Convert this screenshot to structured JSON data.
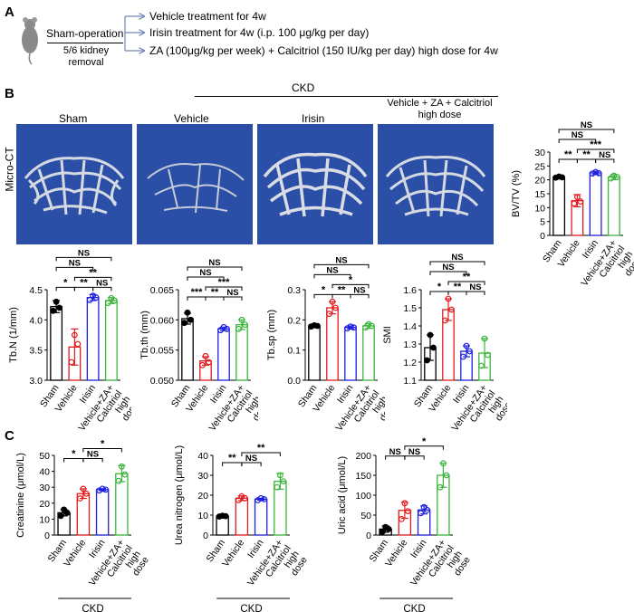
{
  "panelA": {
    "letter": "A",
    "sham_label": "Sham-operation",
    "removal_label": "5/6 kidney removal",
    "arrows": [
      "Vehicle treatment for 4w",
      "Irisin treatment for 4w (i.p. 100 μg/kg per day)",
      "ZA (100μg/kg per week) + Calcitriol (150 IU/kg per day) high dose for 4w"
    ]
  },
  "panelB": {
    "letter": "B",
    "ckd_header": "CKD",
    "microct_label": "Micro-CT",
    "image_titles": [
      "Sham",
      "Vehicle",
      "Irisin",
      "Vehicle + ZA + Calcitriol high dose"
    ]
  },
  "panelC": {
    "letter": "C"
  },
  "colors": {
    "sham": "#000000",
    "vehicle": "#e31a1c",
    "irisin": "#1f1fe0",
    "combo": "#3cb53c",
    "ct_bg": "#2b4fa6"
  },
  "chart_data": [
    {
      "id": "bvtv",
      "type": "bar",
      "ylabel": "BV/TV (%)",
      "ylim": [
        0,
        30
      ],
      "yticks": [
        "0",
        "5",
        "10",
        "15",
        "20",
        "25",
        "30"
      ],
      "categories": [
        "Sham",
        "Vehicle",
        "Irisin",
        "Vehicle+ZA+ Calcitriol high dose"
      ],
      "values": [
        21,
        12.5,
        22.5,
        21
      ],
      "errors": [
        0.6,
        2.2,
        0.6,
        0.9
      ],
      "points": [
        [
          20.8,
          21.2,
          20.9
        ],
        [
          11.5,
          13.8,
          12.2
        ],
        [
          22.3,
          22.8,
          22.4
        ],
        [
          20.5,
          21.5,
          21.0
        ]
      ],
      "group_label": "CKD",
      "sig": [
        {
          "from": 0,
          "to": 1,
          "label": "**",
          "level": 0
        },
        {
          "from": 1,
          "to": 2,
          "label": "**",
          "level": 0
        },
        {
          "from": 2,
          "to": 3,
          "label": "NS",
          "level": 0
        },
        {
          "from": 1,
          "to": 3,
          "label": "***",
          "level": 1
        },
        {
          "from": 0,
          "to": 2,
          "label": "NS",
          "level": 2
        },
        {
          "from": 0,
          "to": 3,
          "label": "NS",
          "level": 3
        }
      ]
    },
    {
      "id": "tbn",
      "type": "bar",
      "ylabel": "Tb.N (1/mm)",
      "ylim": [
        3.0,
        4.5
      ],
      "yticks": [
        "3.0",
        "3.5",
        "4.0",
        "4.5"
      ],
      "categories": [
        "Sham",
        "Vehicle",
        "Irisin",
        "Vehicle+ZA+ Calcitriol high dose"
      ],
      "values": [
        4.22,
        3.55,
        4.37,
        4.32
      ],
      "errors": [
        0.1,
        0.3,
        0.05,
        0.05
      ],
      "points": [
        [
          4.15,
          4.3,
          4.2
        ],
        [
          3.3,
          3.75,
          3.6
        ],
        [
          4.33,
          4.4,
          4.37
        ],
        [
          4.28,
          4.36,
          4.32
        ]
      ],
      "group_label": "CKD",
      "sig": [
        {
          "from": 0,
          "to": 1,
          "label": "*",
          "level": 0
        },
        {
          "from": 1,
          "to": 2,
          "label": "**",
          "level": 0
        },
        {
          "from": 2,
          "to": 3,
          "label": "NS",
          "level": 0
        },
        {
          "from": 1,
          "to": 3,
          "label": "**",
          "level": 1
        },
        {
          "from": 0,
          "to": 2,
          "label": "NS",
          "level": 2
        },
        {
          "from": 0,
          "to": 3,
          "label": "NS",
          "level": 3
        }
      ]
    },
    {
      "id": "tbth",
      "type": "bar",
      "ylabel": "Tb.th (mm)",
      "ylim": [
        0.05,
        0.065
      ],
      "yticks": [
        "0.050",
        "0.055",
        "0.060",
        "0.065"
      ],
      "categories": [
        "Sham",
        "Vehicle",
        "Irisin",
        "Vehicle+ZA+ Calcitriol high dose"
      ],
      "values": [
        0.0602,
        0.0532,
        0.0585,
        0.0592
      ],
      "errors": [
        0.0009,
        0.0007,
        0.0003,
        0.0008
      ],
      "points": [
        [
          0.0595,
          0.0612,
          0.06
        ],
        [
          0.0525,
          0.054,
          0.053
        ],
        [
          0.0583,
          0.0588,
          0.0585
        ],
        [
          0.0585,
          0.06,
          0.0592
        ]
      ],
      "group_label": "CKD",
      "sig": [
        {
          "from": 0,
          "to": 1,
          "label": "***",
          "level": 0
        },
        {
          "from": 1,
          "to": 2,
          "label": "**",
          "level": 0
        },
        {
          "from": 2,
          "to": 3,
          "label": "NS",
          "level": 0
        },
        {
          "from": 1,
          "to": 3,
          "label": "***",
          "level": 1
        },
        {
          "from": 0,
          "to": 2,
          "label": "NS",
          "level": 2
        },
        {
          "from": 0,
          "to": 3,
          "label": "NS",
          "level": 3
        }
      ]
    },
    {
      "id": "tbsp",
      "type": "bar",
      "ylabel": "Tb.sp (mm)",
      "ylim": [
        0,
        0.3
      ],
      "yticks": [
        "0.0",
        "0.1",
        "0.2",
        "0.3"
      ],
      "categories": [
        "Sham",
        "Vehicle",
        "Irisin",
        "Vehicle+ZA+ Calcitriol high dose"
      ],
      "values": [
        0.18,
        0.24,
        0.175,
        0.18
      ],
      "errors": [
        0.005,
        0.02,
        0.005,
        0.008
      ],
      "points": [
        [
          0.178,
          0.182,
          0.18
        ],
        [
          0.22,
          0.26,
          0.24
        ],
        [
          0.172,
          0.178,
          0.175
        ],
        [
          0.175,
          0.186,
          0.18
        ]
      ],
      "group_label": "CKD",
      "sig": [
        {
          "from": 0,
          "to": 1,
          "label": "*",
          "level": 0
        },
        {
          "from": 1,
          "to": 2,
          "label": "**",
          "level": 0
        },
        {
          "from": 2,
          "to": 3,
          "label": "NS",
          "level": 0
        },
        {
          "from": 1,
          "to": 3,
          "label": "*",
          "level": 1
        },
        {
          "from": 0,
          "to": 2,
          "label": "NS",
          "level": 2
        },
        {
          "from": 0,
          "to": 3,
          "label": "NS",
          "level": 3
        }
      ]
    },
    {
      "id": "smi",
      "type": "bar",
      "ylabel": "SMI",
      "ylim": [
        1.1,
        1.6
      ],
      "yticks": [
        "1.1",
        "1.2",
        "1.3",
        "1.4",
        "1.5",
        "1.6"
      ],
      "categories": [
        "Sham",
        "Vehicle",
        "Irisin",
        "Vehicle+ZA+ Calcitriol high dose"
      ],
      "values": [
        1.28,
        1.49,
        1.26,
        1.25
      ],
      "errors": [
        0.07,
        0.06,
        0.03,
        0.08
      ],
      "points": [
        [
          1.21,
          1.35,
          1.28
        ],
        [
          1.43,
          1.55,
          1.49
        ],
        [
          1.23,
          1.29,
          1.26
        ],
        [
          1.18,
          1.33,
          1.24
        ]
      ],
      "group_label": "CKD",
      "sig": [
        {
          "from": 0,
          "to": 1,
          "label": "*",
          "level": 0
        },
        {
          "from": 1,
          "to": 2,
          "label": "**",
          "level": 0
        },
        {
          "from": 2,
          "to": 3,
          "label": "NS",
          "level": 0
        },
        {
          "from": 1,
          "to": 3,
          "label": "**",
          "level": 1
        },
        {
          "from": 0,
          "to": 2,
          "label": "NS",
          "level": 2
        },
        {
          "from": 0,
          "to": 3,
          "label": "NS",
          "level": 3
        }
      ]
    },
    {
      "id": "creat",
      "type": "bar",
      "ylabel": "Creatinine (μmol/L)",
      "ylim": [
        0,
        50
      ],
      "yticks": [
        "0",
        "10",
        "20",
        "30",
        "40",
        "50"
      ],
      "categories": [
        "Sham",
        "Vehicle",
        "Irisin",
        "Vehicle+ZA+ Calcitriol high dose"
      ],
      "values": [
        14,
        26,
        28.5,
        38.5
      ],
      "errors": [
        2,
        3,
        0.6,
        5
      ],
      "points": [
        [
          12,
          16,
          14
        ],
        [
          23,
          29,
          26
        ],
        [
          28,
          29,
          28.5
        ],
        [
          34,
          43,
          38
        ]
      ],
      "group_label": "CKD",
      "sig": [
        {
          "from": 0,
          "to": 1,
          "label": "*",
          "level": 0
        },
        {
          "from": 1,
          "to": 2,
          "label": "NS",
          "level": 0
        },
        {
          "from": 1,
          "to": 3,
          "label": "*",
          "level": 1
        }
      ]
    },
    {
      "id": "urea",
      "type": "bar",
      "ylabel": "Urea nitrogen (μmol/L)",
      "ylim": [
        0,
        40
      ],
      "yticks": [
        "0",
        "10",
        "20",
        "30",
        "40"
      ],
      "categories": [
        "Sham",
        "Vehicle",
        "Irisin",
        "Vehicle+ZA+ Calcitriol high dose"
      ],
      "values": [
        9.5,
        18.5,
        18,
        27
      ],
      "errors": [
        0.3,
        1.2,
        0.5,
        4
      ],
      "points": [
        [
          9.3,
          9.7,
          9.5
        ],
        [
          17.5,
          19.5,
          18.5
        ],
        [
          17.5,
          18.5,
          18
        ],
        [
          24,
          30,
          27
        ]
      ],
      "group_label": "CKD",
      "sig": [
        {
          "from": 0,
          "to": 1,
          "label": "**",
          "level": 0
        },
        {
          "from": 1,
          "to": 2,
          "label": "NS",
          "level": 0
        },
        {
          "from": 1,
          "to": 3,
          "label": "**",
          "level": 1
        }
      ]
    },
    {
      "id": "uric",
      "type": "bar",
      "ylabel": "Uric acid (μmol/L)",
      "ylim": [
        0,
        200
      ],
      "yticks": [
        "0",
        "50",
        "100",
        "150",
        "200"
      ],
      "categories": [
        "Sham",
        "Vehicle",
        "Irisin",
        "Vehicle+ZA+ Calcitriol high dose"
      ],
      "values": [
        15,
        62,
        63,
        150
      ],
      "errors": [
        8,
        20,
        10,
        30
      ],
      "points": [
        [
          8,
          20,
          15
        ],
        [
          40,
          80,
          60
        ],
        [
          55,
          70,
          63
        ],
        [
          120,
          180,
          150
        ]
      ],
      "group_label": "CKD",
      "sig": [
        {
          "from": 0,
          "to": 1,
          "label": "NS",
          "level": 0
        },
        {
          "from": 1,
          "to": 2,
          "label": "NS",
          "level": 0
        },
        {
          "from": 1,
          "to": 3,
          "label": "*",
          "level": 1
        }
      ]
    }
  ]
}
